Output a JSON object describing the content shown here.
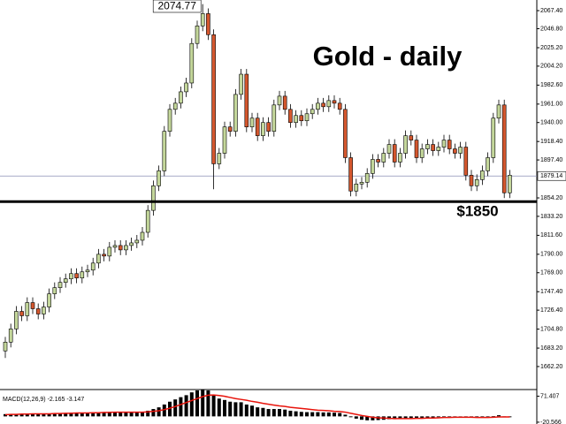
{
  "chart_data": [
    {
      "type": "candlestick",
      "title": "Gold - daily",
      "up_color": "#c4d79b",
      "down_color": "#d4572e",
      "open": [
        1680,
        1690,
        1705,
        1725,
        1720,
        1735,
        1728,
        1722,
        1730,
        1745,
        1752,
        1758,
        1762,
        1768,
        1763,
        1770,
        1772,
        1780,
        1790,
        1788,
        1798,
        1800,
        1795,
        1800,
        1803,
        1806,
        1815,
        1840,
        1868,
        1885,
        1930,
        1955,
        1962,
        1975,
        1985,
        2030,
        2050,
        2064,
        2040,
        1893,
        1905,
        1935,
        1930,
        1972,
        1995,
        1935,
        1945,
        1925,
        1940,
        1930,
        1960,
        1970,
        1955,
        1940,
        1948,
        1942,
        1950,
        1955,
        1962,
        1958,
        1965,
        1962,
        1955,
        1900,
        1862,
        1870,
        1872,
        1882,
        1898,
        1895,
        1905,
        1915,
        1895,
        1905,
        1925,
        1920,
        1900,
        1910,
        1915,
        1908,
        1912,
        1920,
        1910,
        1905,
        1912,
        1880,
        1868,
        1875,
        1885,
        1900,
        1945,
        1960,
        1860
      ],
      "high": [
        1696,
        1711,
        1731,
        1731,
        1741,
        1741,
        1734,
        1736,
        1751,
        1758,
        1764,
        1768,
        1774,
        1774,
        1776,
        1778,
        1786,
        1796,
        1796,
        1804,
        1806,
        1806,
        1806,
        1809,
        1812,
        1821,
        1846,
        1874,
        1891,
        1936,
        1961,
        1968,
        1981,
        1991,
        2036,
        2056,
        2074.77,
        2070,
        2046,
        1911,
        1941,
        1941,
        1978,
        2001,
        2001,
        1951,
        1951,
        1946,
        1946,
        1966,
        1976,
        1976,
        1961,
        1954,
        1954,
        1956,
        1961,
        1968,
        1968,
        1971,
        1971,
        1968,
        1961,
        1906,
        1876,
        1878,
        1888,
        1904,
        1904,
        1911,
        1921,
        1921,
        1911,
        1931,
        1931,
        1926,
        1916,
        1921,
        1921,
        1918,
        1926,
        1926,
        1916,
        1918,
        1918,
        1886,
        1881,
        1891,
        1906,
        1951,
        1966,
        1966,
        1886
      ],
      "low": [
        1672,
        1684,
        1699,
        1714,
        1714,
        1722,
        1716,
        1716,
        1724,
        1739,
        1746,
        1752,
        1756,
        1757,
        1757,
        1764,
        1766,
        1774,
        1782,
        1782,
        1792,
        1789,
        1789,
        1794,
        1797,
        1800,
        1809,
        1834,
        1862,
        1879,
        1924,
        1949,
        1956,
        1969,
        1979,
        2024,
        2044,
        2034,
        1864,
        1887,
        1899,
        1924,
        1924,
        1966,
        1929,
        1929,
        1919,
        1919,
        1924,
        1924,
        1954,
        1949,
        1934,
        1934,
        1936,
        1936,
        1944,
        1949,
        1952,
        1952,
        1956,
        1949,
        1894,
        1856,
        1856,
        1864,
        1866,
        1876,
        1889,
        1889,
        1899,
        1889,
        1889,
        1899,
        1914,
        1894,
        1894,
        1904,
        1902,
        1902,
        1906,
        1904,
        1899,
        1899,
        1874,
        1862,
        1862,
        1869,
        1879,
        1894,
        1939,
        1854,
        1854
      ],
      "close": [
        1690,
        1705,
        1725,
        1720,
        1735,
        1728,
        1722,
        1730,
        1745,
        1752,
        1758,
        1762,
        1768,
        1763,
        1770,
        1772,
        1780,
        1790,
        1788,
        1798,
        1800,
        1795,
        1800,
        1803,
        1806,
        1815,
        1840,
        1868,
        1885,
        1930,
        1955,
        1962,
        1975,
        1985,
        2030,
        2050,
        2064,
        2040,
        1893,
        1905,
        1935,
        1930,
        1972,
        1995,
        1935,
        1945,
        1925,
        1940,
        1930,
        1960,
        1970,
        1955,
        1940,
        1948,
        1942,
        1950,
        1955,
        1962,
        1958,
        1965,
        1962,
        1955,
        1900,
        1862,
        1870,
        1872,
        1882,
        1898,
        1895,
        1905,
        1915,
        1895,
        1905,
        1925,
        1920,
        1900,
        1910,
        1915,
        1908,
        1912,
        1920,
        1910,
        1905,
        1912,
        1880,
        1868,
        1875,
        1885,
        1900,
        1945,
        1960,
        1860,
        1880
      ],
      "ylim": [
        1636,
        2079.5
      ],
      "yticks": [
        {
          "value": 2067.4,
          "label": "2067.40"
        },
        {
          "value": 2046.8,
          "label": "2046.80"
        },
        {
          "value": 2025.2,
          "label": "2025.20"
        },
        {
          "value": 2004.2,
          "label": "2004.20"
        },
        {
          "value": 1982.6,
          "label": "1982.60"
        },
        {
          "value": 1961,
          "label": "1961.00"
        },
        {
          "value": 1940,
          "label": "1940.00"
        },
        {
          "value": 1918.4,
          "label": "1918.40"
        },
        {
          "value": 1897.4,
          "label": "1897.40"
        },
        {
          "value": 1854.2,
          "label": "1854.20"
        },
        {
          "value": 1833.2,
          "label": "1833.20"
        },
        {
          "value": 1811.6,
          "label": "1811.60"
        },
        {
          "value": 1790,
          "label": "1790.00"
        },
        {
          "value": 1769,
          "label": "1769.00"
        },
        {
          "value": 1747.4,
          "label": "1747.40"
        },
        {
          "value": 1726.4,
          "label": "1726.40"
        },
        {
          "value": 1704.8,
          "label": "1704.80"
        },
        {
          "value": 1683.2,
          "label": "1683.20"
        },
        {
          "value": 1662.2,
          "label": "1662.20"
        }
      ],
      "high_label": 2074.77,
      "level": 1850,
      "level_label": "$1850",
      "last_price": 1879.14
    },
    {
      "type": "macd",
      "label": "MACD(12,26,9) -2.165 -3.147",
      "histogram_color": "#000000",
      "signal_color": "#e8140c",
      "histogram": [
        8,
        8,
        9,
        9,
        10,
        10,
        9,
        9,
        10,
        11,
        12,
        12,
        13,
        12,
        13,
        13,
        14,
        15,
        15,
        16,
        16,
        15,
        15,
        15,
        15,
        16,
        20,
        26,
        32,
        42,
        52,
        60,
        68,
        75,
        85,
        92,
        95,
        92,
        75,
        63,
        58,
        52,
        50,
        50,
        42,
        38,
        32,
        30,
        26,
        26,
        26,
        24,
        20,
        18,
        16,
        15,
        15,
        15,
        14,
        14,
        13,
        12,
        6,
        -3,
        -8,
        -12,
        -14,
        -14,
        -13,
        -12,
        -10,
        -10,
        -9,
        -7,
        -6,
        -6,
        -5,
        -4,
        -4,
        -3,
        -2,
        -2,
        -2,
        -1,
        -3,
        -5,
        -5,
        -5,
        -4,
        1,
        4,
        -2,
        -3
      ],
      "signal": [
        6,
        7,
        7,
        8,
        8,
        9,
        9,
        9,
        9,
        10,
        10,
        11,
        11,
        12,
        12,
        12,
        13,
        13,
        14,
        14,
        15,
        15,
        15,
        15,
        15,
        15,
        16,
        18,
        20,
        24,
        29,
        35,
        42,
        49,
        56,
        63,
        70,
        75,
        76,
        74,
        71,
        67,
        63,
        60,
        57,
        53,
        50,
        46,
        43,
        40,
        37,
        35,
        32,
        30,
        28,
        26,
        24,
        22,
        21,
        20,
        18,
        17,
        15,
        11,
        7,
        3,
        0,
        -3,
        -5,
        -6,
        -7,
        -8,
        -8,
        -8,
        -8,
        -7,
        -7,
        -6,
        -6,
        -5,
        -4,
        -4,
        -3,
        -3,
        -3,
        -3,
        -4,
        -4,
        -4,
        -3,
        -2,
        -2,
        -2
      ],
      "ylim": [
        -27,
        95
      ],
      "yticks": [
        71.407,
        -20.566
      ]
    }
  ]
}
